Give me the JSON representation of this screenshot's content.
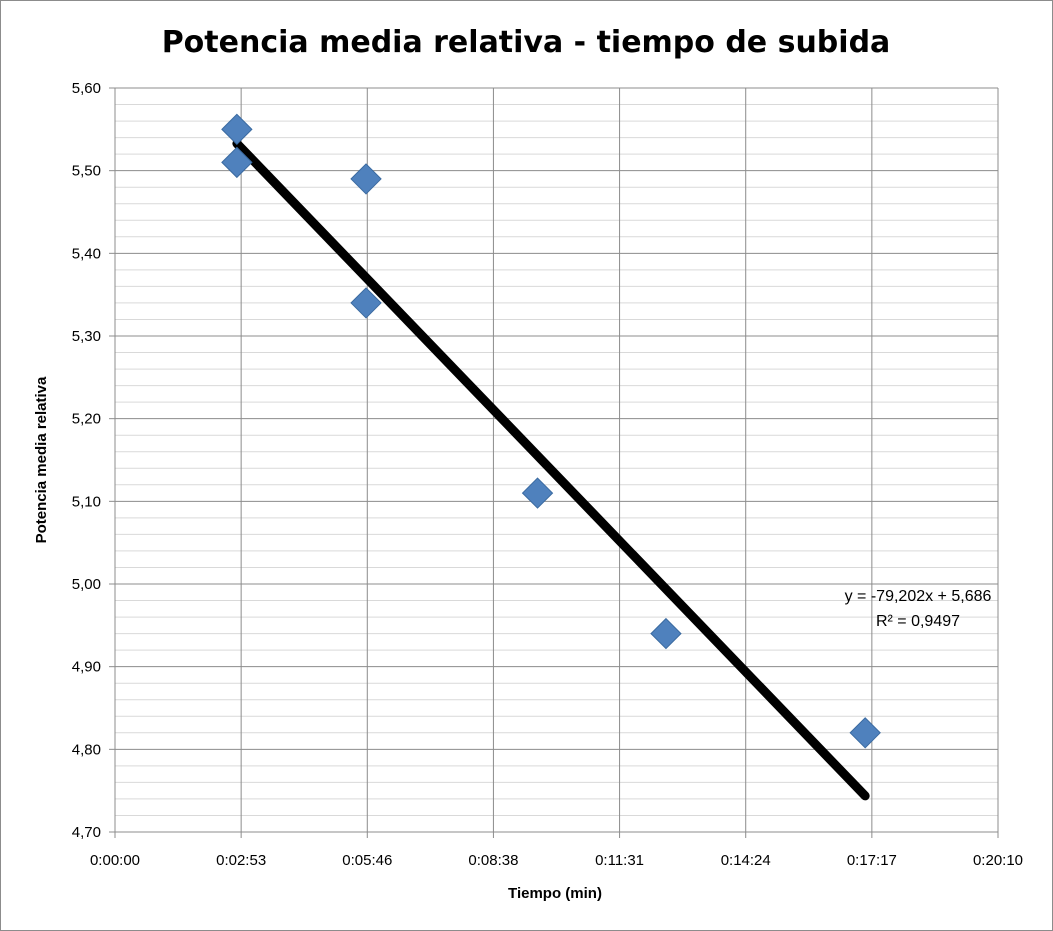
{
  "chart_data": {
    "type": "scatter",
    "title": "Potencia media relativa - tiempo de subida",
    "xlabel": "Tiempo (min)",
    "ylabel": "Potencia media relativa",
    "x_tick_labels": [
      "0:00:00",
      "0:02:53",
      "0:05:46",
      "0:08:38",
      "0:11:31",
      "0:14:24",
      "0:17:17",
      "0:20:10"
    ],
    "y_tick_labels": [
      "4,70",
      "4,80",
      "4,90",
      "5,00",
      "5,10",
      "5,20",
      "5,30",
      "5,40",
      "5,50",
      "5,60"
    ],
    "xlim": [
      "0:00:00",
      "0:20:10"
    ],
    "ylim": [
      4.7,
      5.6
    ],
    "grid": {
      "major": true,
      "minor": true
    },
    "series": [
      {
        "color": "#4F81BD",
        "marker": "diamond",
        "points": [
          {
            "x": "0:02:47",
            "y": 5.55
          },
          {
            "x": "0:02:47",
            "y": 5.51
          },
          {
            "x": "0:05:44",
            "y": 5.49
          },
          {
            "x": "0:05:44",
            "y": 5.34
          },
          {
            "x": "0:09:39",
            "y": 5.11
          },
          {
            "x": "0:12:35",
            "y": 4.94
          },
          {
            "x": "0:17:08",
            "y": 4.82
          }
        ]
      }
    ],
    "trendline": {
      "type": "linear",
      "color": "#000000",
      "x_start": "0:02:47",
      "x_end": "0:17:08",
      "slope": -79.202,
      "intercept": 5.686
    },
    "annotations": [
      "y = -79,202x + 5,686",
      "R² = 0,9497"
    ]
  }
}
